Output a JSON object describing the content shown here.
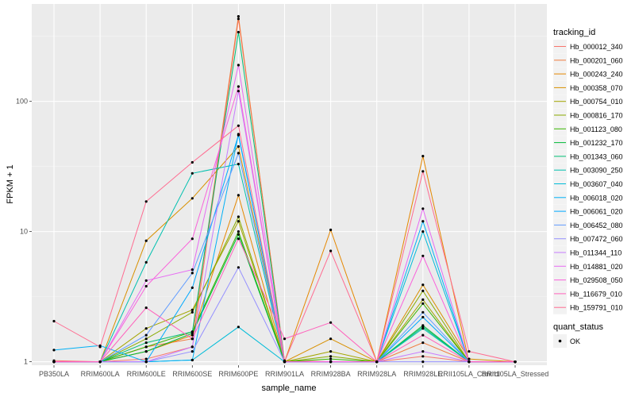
{
  "chart_data": {
    "type": "line",
    "xlabel": "sample_name",
    "ylabel": "FPKM + 1",
    "y_scale": "log10",
    "ylim": [
      0.94,
      560
    ],
    "y_ticks": [
      1,
      10,
      100
    ],
    "y_tick_labels": [
      "1",
      "10",
      "100"
    ],
    "categories": [
      "PB350LA",
      "RRIM600LA",
      "RRIM600LE",
      "RRIM600SE",
      "RRIM600PE",
      "RRIM901LA",
      "RRIM928BA",
      "RRIM928LA",
      "RRIM928LE",
      "RRII105LA_Control",
      "RRII105LA_Stressed"
    ],
    "grid": true,
    "background": "#EBEBEB",
    "legend": {
      "title": "tracking_id",
      "position": "right",
      "status_title": "quant_status",
      "status_items": [
        "OK"
      ]
    },
    "series": [
      {
        "name": "Hb_000012_340",
        "color": "#F8766D",
        "values": [
          1.02,
          1.0,
          1.05,
          1.3,
          430,
          1.02,
          1.0,
          1.0,
          1.1,
          1.0,
          1.0
        ]
      },
      {
        "name": "Hb_000201_060",
        "color": "#F07C3E",
        "values": [
          1.0,
          1.0,
          1.3,
          1.5,
          450,
          1.0,
          1.0,
          1.0,
          1.4,
          1.0,
          1.0
        ]
      },
      {
        "name": "Hb_000243_240",
        "color": "#E58700",
        "values": [
          1.0,
          1.0,
          1.2,
          1.6,
          19,
          1.0,
          10.3,
          1.0,
          38,
          1.0,
          1.0
        ]
      },
      {
        "name": "Hb_000358_070",
        "color": "#D89000",
        "values": [
          1.0,
          1.0,
          8.5,
          18,
          45,
          1.0,
          1.5,
          1.0,
          3.9,
          1.05,
          1.0
        ]
      },
      {
        "name": "Hb_000754_010",
        "color": "#A3A500",
        "values": [
          1.0,
          1.0,
          1.8,
          2.5,
          12,
          1.0,
          1.2,
          1.0,
          3.0,
          1.0,
          1.0
        ]
      },
      {
        "name": "Hb_000816_170",
        "color": "#8AAB00",
        "values": [
          1.0,
          1.0,
          1.5,
          2.4,
          13,
          1.0,
          1.1,
          1.0,
          3.5,
          1.0,
          1.0
        ]
      },
      {
        "name": "Hb_001123_080",
        "color": "#39B600",
        "values": [
          1.0,
          1.0,
          1.3,
          1.7,
          10,
          1.0,
          1.05,
          1.0,
          2.8,
          1.0,
          1.0
        ]
      },
      {
        "name": "Hb_001232_170",
        "color": "#00BA38",
        "values": [
          1.0,
          1.0,
          1.2,
          1.65,
          9.5,
          1.0,
          1.0,
          1.0,
          1.9,
          1.0,
          1.0
        ]
      },
      {
        "name": "Hb_001343_060",
        "color": "#00BF74",
        "values": [
          1.0,
          1.0,
          1.4,
          1.7,
          340,
          1.0,
          1.0,
          1.0,
          1.85,
          1.0,
          1.0
        ]
      },
      {
        "name": "Hb_003090_250",
        "color": "#00C0AF",
        "values": [
          1.0,
          1.0,
          5.8,
          28,
          33,
          1.0,
          1.0,
          1.0,
          1.8,
          1.0,
          1.0
        ]
      },
      {
        "name": "Hb_003607_040",
        "color": "#00BCD8",
        "values": [
          1.0,
          1.0,
          1.0,
          1.03,
          1.85,
          1.0,
          1.0,
          1.0,
          10,
          1.0,
          1.0
        ]
      },
      {
        "name": "Hb_006018_020",
        "color": "#00B0F6",
        "values": [
          1.23,
          1.33,
          1.0,
          1.03,
          56,
          1.0,
          1.0,
          1.0,
          12,
          1.0,
          1.0
        ]
      },
      {
        "name": "Hb_006061_020",
        "color": "#00A9FF",
        "values": [
          1.0,
          1.0,
          1.0,
          3.7,
          55,
          1.0,
          1.0,
          1.0,
          2.2,
          1.0,
          1.0
        ]
      },
      {
        "name": "Hb_006452_080",
        "color": "#619CFF",
        "values": [
          1.0,
          1.0,
          1.6,
          4.8,
          40,
          1.0,
          1.0,
          1.0,
          2.4,
          1.0,
          1.0
        ]
      },
      {
        "name": "Hb_007472_060",
        "color": "#9590FF",
        "values": [
          1.0,
          1.0,
          1.0,
          1.2,
          5.3,
          1.0,
          1.0,
          1.0,
          1.0,
          1.0,
          1.0
        ]
      },
      {
        "name": "Hb_011344_110",
        "color": "#C77CFF",
        "values": [
          1.0,
          1.0,
          1.0,
          1.3,
          120,
          1.0,
          1.0,
          1.0,
          1.2,
          1.0,
          1.0
        ]
      },
      {
        "name": "Hb_014881_020",
        "color": "#E76BF3",
        "values": [
          1.0,
          1.0,
          4.2,
          5.1,
          190,
          1.0,
          1.0,
          1.0,
          15,
          1.0,
          1.0
        ]
      },
      {
        "name": "Hb_029508_050",
        "color": "#FA62DB",
        "values": [
          1.0,
          1.0,
          3.8,
          8.8,
          130,
          1.0,
          1.0,
          1.0,
          6.5,
          1.0,
          1.0
        ]
      },
      {
        "name": "Hb_116679_010",
        "color": "#FF62BC",
        "values": [
          1.0,
          1.0,
          2.6,
          1.5,
          8.8,
          1.5,
          2.0,
          1.0,
          1.6,
          1.0,
          1.0
        ]
      },
      {
        "name": "Hb_159791_010",
        "color": "#FF6C91",
        "values": [
          2.05,
          1.3,
          17,
          34,
          65,
          1.0,
          7.1,
          1.0,
          29,
          1.2,
          1.0
        ]
      }
    ]
  }
}
